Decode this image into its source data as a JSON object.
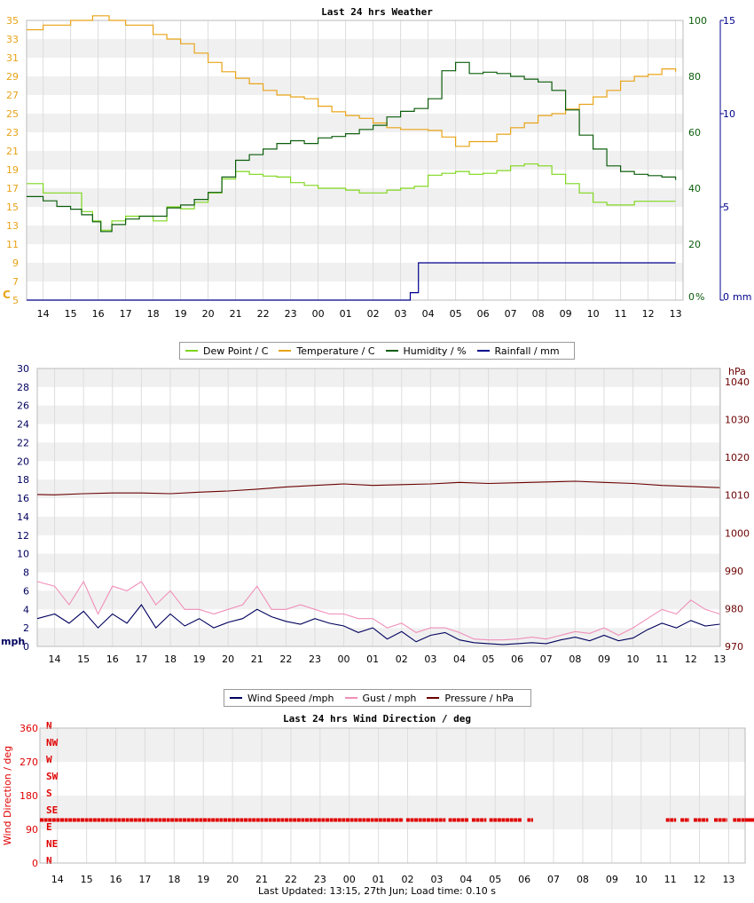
{
  "colors": {
    "dew_point": "#7fd61c",
    "temperature": "#e8a317",
    "humidity": "#0b5d0b",
    "rainfall": "#00008b",
    "wind_speed": "#00005e",
    "gust": "#f08fb8",
    "pressure": "#6b0000",
    "wind_dir": "#e00000",
    "grid_band": "#f0f0f0"
  },
  "footer": "Last Updated: 13:15, 27th Jun; Load time: 0.10 s",
  "chart_data": [
    {
      "type": "line",
      "title": "Last 24 hrs Weather",
      "categories": [
        "14",
        "15",
        "16",
        "17",
        "18",
        "19",
        "20",
        "21",
        "22",
        "23",
        "00",
        "01",
        "02",
        "03",
        "04",
        "05",
        "06",
        "07",
        "08",
        "09",
        "10",
        "11",
        "12",
        "13"
      ],
      "y_left": {
        "unit": "C",
        "ylim": [
          5,
          35
        ],
        "ticks": [
          5,
          7,
          9,
          11,
          13,
          15,
          17,
          19,
          21,
          23,
          25,
          27,
          29,
          31,
          33,
          35
        ]
      },
      "y_right1": {
        "unit": "%",
        "ylim": [
          0,
          100
        ],
        "ticks": [
          0,
          20,
          40,
          60,
          80,
          100
        ]
      },
      "y_right2": {
        "unit": "mm",
        "ylim": [
          0,
          15
        ],
        "ticks": [
          0,
          5,
          10,
          15
        ]
      },
      "legend": [
        "Dew Point / C",
        "Temperature / C",
        "Humidity / %",
        "Rainfall / mm"
      ],
      "x_start": 13.4,
      "series": [
        {
          "name": "Dew Point / C",
          "axis": "left",
          "color_key": "dew_point",
          "step": true,
          "x": [
            13.4,
            14.0,
            14.5,
            15.0,
            15.4,
            15.8,
            16.1,
            16.5,
            17.0,
            17.5,
            18.0,
            18.5,
            19.0,
            19.5,
            20.0,
            20.5,
            21.0,
            21.5,
            22.0,
            22.5,
            23.0,
            23.5,
            24.0,
            24.5,
            25.0,
            25.5,
            26.0,
            26.5,
            27.0,
            27.5,
            28.0,
            28.5,
            29.0,
            29.5,
            30.0,
            30.5,
            31.0,
            31.5,
            32.0,
            32.5,
            33.0,
            33.5,
            34.0,
            34.5,
            35.0,
            35.5,
            36.0,
            36.5,
            37.0
          ],
          "y": [
            17.5,
            16.5,
            16.5,
            16.5,
            14.5,
            13.5,
            12.5,
            13.5,
            14,
            14,
            13.5,
            15,
            14.8,
            15.5,
            16.5,
            18,
            18.8,
            18.5,
            18.3,
            18.2,
            17.6,
            17.3,
            17.0,
            17.0,
            16.8,
            16.5,
            16.5,
            16.8,
            17.0,
            17.2,
            18.4,
            18.6,
            18.8,
            18.5,
            18.6,
            18.9,
            19.4,
            19.6,
            19.4,
            18.5,
            17.5,
            16.5,
            15.5,
            15.2,
            15.2,
            15.6,
            15.6,
            15.6,
            15.6
          ]
        },
        {
          "name": "Temperature / C",
          "axis": "left",
          "color_key": "temperature",
          "step": true,
          "x": [
            13.4,
            14.0,
            14.5,
            15.0,
            15.8,
            16.4,
            17.0,
            17.5,
            18.0,
            18.5,
            19.0,
            19.5,
            20.0,
            20.5,
            21.0,
            21.5,
            22.0,
            22.5,
            23.0,
            23.5,
            24.0,
            24.5,
            25.0,
            25.5,
            26.0,
            26.5,
            27.0,
            27.5,
            28.0,
            28.5,
            29.0,
            29.5,
            30.0,
            30.5,
            31.0,
            31.5,
            32.0,
            32.5,
            33.0,
            33.5,
            34.0,
            34.5,
            35.0,
            35.5,
            36.0,
            36.5,
            37.0
          ],
          "y": [
            34,
            34.5,
            34.5,
            35,
            35.5,
            35,
            34.5,
            34.5,
            33.5,
            33,
            32.5,
            31.5,
            30.5,
            29.5,
            28.8,
            28.2,
            27.5,
            27,
            26.8,
            26.6,
            25.8,
            25.2,
            24.8,
            24.5,
            24,
            23.5,
            23.3,
            23.3,
            23.2,
            22.5,
            21.5,
            22,
            22,
            22.8,
            23.5,
            24,
            24.8,
            25,
            25.5,
            26,
            26.8,
            27.5,
            28.5,
            29,
            29.2,
            29.8,
            29.5
          ]
        },
        {
          "name": "Humidity / %",
          "axis": "right1",
          "color_key": "humidity",
          "step": true,
          "x": [
            13.4,
            14.0,
            14.5,
            15.0,
            15.4,
            15.8,
            16.1,
            16.5,
            17.0,
            17.5,
            18.0,
            18.5,
            19.0,
            19.5,
            20.0,
            20.5,
            21.0,
            21.5,
            22.0,
            22.5,
            23.0,
            23.5,
            24.0,
            24.5,
            25.0,
            25.5,
            26.0,
            26.5,
            27.0,
            27.5,
            28.0,
            28.5,
            29.0,
            29.5,
            30.0,
            30.5,
            31.0,
            31.5,
            32.0,
            32.5,
            33.0,
            33.5,
            34.0,
            34.5,
            35.0,
            35.5,
            36.0,
            36.5,
            37.0
          ],
          "y": [
            37,
            35.5,
            33.5,
            32.5,
            30.5,
            28,
            24.5,
            27,
            29,
            30,
            30,
            33,
            34,
            36,
            38.5,
            44,
            50,
            52,
            54,
            56,
            57,
            56,
            58,
            58.5,
            59.5,
            61,
            62.5,
            65.5,
            67.5,
            68.5,
            72,
            82,
            85,
            81,
            81.5,
            81,
            80,
            79,
            78,
            75,
            68,
            59,
            54,
            48,
            46,
            45,
            44.5,
            44,
            43
          ]
        },
        {
          "name": "Rainfall / mm",
          "axis": "right2",
          "color_key": "rainfall",
          "step": true,
          "x": [
            13.4,
            26.9,
            27.35,
            27.65,
            37.0
          ],
          "y": [
            0,
            0,
            0.4,
            2.0,
            2.0
          ]
        }
      ]
    },
    {
      "type": "line",
      "categories": [
        "14",
        "15",
        "16",
        "17",
        "18",
        "19",
        "20",
        "21",
        "22",
        "23",
        "00",
        "01",
        "02",
        "03",
        "04",
        "05",
        "06",
        "07",
        "08",
        "09",
        "10",
        "11",
        "12",
        "13"
      ],
      "y_left": {
        "unit": "mph",
        "ylim": [
          0,
          30
        ],
        "ticks": [
          0,
          2,
          4,
          6,
          8,
          10,
          12,
          14,
          16,
          18,
          20,
          22,
          24,
          26,
          28,
          30
        ]
      },
      "y_right": {
        "unit": "hPa",
        "ylim": [
          970,
          1044
        ],
        "ticks": [
          970,
          980,
          990,
          1000,
          1010,
          1020,
          1030,
          1040
        ]
      },
      "legend": [
        "Wind Speed /mph",
        "Gust / mph",
        "Pressure / hPa"
      ],
      "x_start": 13.4,
      "series": [
        {
          "name": "Wind Speed /mph",
          "axis": "left",
          "color_key": "wind_speed",
          "x": [
            13.4,
            14.0,
            14.5,
            15.0,
            15.5,
            16.0,
            16.5,
            17.0,
            17.5,
            18.0,
            18.5,
            19.0,
            19.5,
            20.0,
            20.5,
            21.0,
            21.5,
            22.0,
            22.5,
            23.0,
            23.5,
            24.0,
            24.5,
            25.0,
            25.5,
            26.0,
            26.5,
            27.0,
            27.5,
            28.0,
            28.5,
            29.0,
            29.5,
            30.0,
            30.5,
            31.0,
            31.5,
            32.0,
            32.5,
            33.0,
            33.5,
            34.0,
            34.5,
            35.0,
            35.5,
            36.0,
            36.5,
            37.0
          ],
          "y": [
            3,
            3.5,
            2.5,
            3.8,
            2.0,
            3.5,
            2.5,
            4.5,
            2.0,
            3.5,
            2.2,
            3.0,
            2.0,
            2.6,
            3.0,
            4.0,
            3.2,
            2.7,
            2.4,
            3.0,
            2.5,
            2.2,
            1.5,
            2.0,
            0.8,
            1.6,
            0.5,
            1.2,
            1.5,
            0.7,
            0.4,
            0.3,
            0.2,
            0.3,
            0.4,
            0.3,
            0.7,
            1.0,
            0.6,
            1.2,
            0.6,
            0.9,
            1.8,
            2.5,
            2.0,
            2.8,
            2.2,
            2.4
          ]
        },
        {
          "name": "Gust / mph",
          "axis": "left",
          "color_key": "gust",
          "x": [
            13.4,
            14.0,
            14.5,
            15.0,
            15.5,
            16.0,
            16.5,
            17.0,
            17.5,
            18.0,
            18.5,
            19.0,
            19.5,
            20.0,
            20.5,
            21.0,
            21.5,
            22.0,
            22.5,
            23.0,
            23.5,
            24.0,
            24.5,
            25.0,
            25.5,
            26.0,
            26.5,
            27.0,
            27.5,
            28.0,
            28.5,
            29.0,
            29.5,
            30.0,
            30.5,
            31.0,
            31.5,
            32.0,
            32.5,
            33.0,
            33.5,
            34.0,
            34.5,
            35.0,
            35.5,
            36.0,
            36.5,
            37.0
          ],
          "y": [
            7,
            6.5,
            4.5,
            7,
            3.5,
            6.5,
            6,
            7,
            4.5,
            6,
            4,
            4,
            3.5,
            4,
            4.5,
            6.5,
            4,
            4,
            4.5,
            4,
            3.5,
            3.5,
            3,
            3,
            2,
            2.5,
            1.5,
            2,
            2,
            1.5,
            0.8,
            0.7,
            0.7,
            0.8,
            1,
            0.8,
            1.2,
            1.6,
            1.4,
            2,
            1.2,
            2,
            3,
            4,
            3.5,
            5,
            4,
            3.5
          ]
        },
        {
          "name": "Pressure / hPa",
          "axis": "right",
          "color_key": "pressure",
          "x": [
            13.4,
            14.0,
            15.0,
            16.0,
            17.0,
            18.0,
            19.0,
            20.0,
            21.0,
            22.0,
            23.0,
            24.0,
            25.0,
            26.0,
            27.0,
            28.0,
            29.0,
            30.0,
            31.0,
            32.0,
            33.0,
            34.0,
            35.0,
            36.0,
            37.0
          ],
          "y": [
            1010.2,
            1010.1,
            1010.4,
            1010.6,
            1010.6,
            1010.4,
            1010.8,
            1011.1,
            1011.6,
            1012.2,
            1012.6,
            1013.0,
            1012.6,
            1012.8,
            1013.0,
            1013.4,
            1013.1,
            1013.3,
            1013.5,
            1013.7,
            1013.4,
            1013.1,
            1012.6,
            1012.3,
            1012.0
          ]
        }
      ]
    },
    {
      "type": "scatter",
      "title": "Last 24 hrs Wind Direction / deg",
      "ylabel": "Wind Direction / deg",
      "categories": [
        "14",
        "15",
        "16",
        "17",
        "18",
        "19",
        "20",
        "21",
        "22",
        "23",
        "00",
        "01",
        "02",
        "03",
        "04",
        "05",
        "06",
        "07",
        "08",
        "09",
        "10",
        "11",
        "12",
        "13"
      ],
      "y_left": {
        "ylim": [
          0,
          360
        ],
        "ticks": [
          0,
          90,
          180,
          270,
          360
        ]
      },
      "compass_labels": [
        "N",
        "NE",
        "E",
        "SE",
        "S",
        "SW",
        "W",
        "NW",
        "N"
      ],
      "x_start": 13.4,
      "series": [
        {
          "name": "",
          "color_key": "wind_dir",
          "value": 115,
          "segments": [
            [
              13.4,
              25.85
            ],
            [
              25.95,
              27.3
            ],
            [
              27.4,
              28.1
            ],
            [
              28.2,
              28.7
            ],
            [
              28.8,
              29.9
            ],
            [
              30.1,
              30.3
            ],
            [
              34.85,
              35.2
            ],
            [
              35.35,
              35.65
            ],
            [
              35.8,
              36.3
            ],
            [
              36.5,
              36.95
            ],
            [
              37.15,
              37.7
            ],
            [
              37.85,
              38.3
            ],
            [
              38.45,
              38.9
            ],
            [
              39.1,
              40.2
            ]
          ]
        }
      ]
    }
  ]
}
